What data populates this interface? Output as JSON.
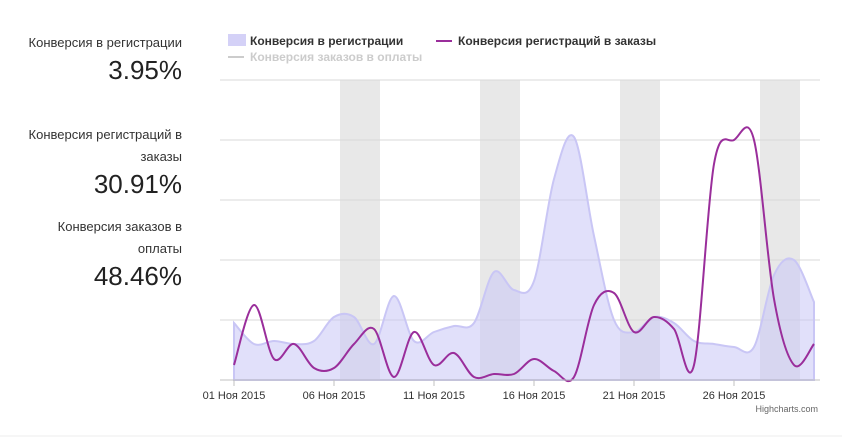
{
  "stats": [
    {
      "label": "Конверсия в регистрации",
      "value": "3.95%"
    },
    {
      "label": "Конверсия регистраций в заказы",
      "value": "30.91%"
    },
    {
      "label": "Конверсия заказов в оплаты",
      "value": "48.46%"
    }
  ],
  "chart_data": {
    "type": "line",
    "categories": [
      "01 Ноя 2015",
      null,
      null,
      null,
      null,
      "06 Ноя 2015",
      null,
      null,
      null,
      null,
      "11 Ноя 2015",
      null,
      null,
      null,
      null,
      "16 Ноя 2015",
      null,
      null,
      null,
      null,
      "21 Ноя 2015",
      null,
      null,
      null,
      null,
      "26 Ноя 2015",
      null,
      null,
      null,
      null
    ],
    "series": [
      {
        "name": "Конверсия в регистрации",
        "kind": "area",
        "color": "#c9c6f5",
        "values": [
          19,
          12,
          13,
          12,
          13,
          21,
          21,
          12,
          28,
          13,
          16,
          18,
          19,
          36,
          30,
          33,
          67,
          81,
          48,
          20,
          16,
          21,
          19,
          13,
          12,
          11,
          11,
          35,
          40,
          26
        ]
      },
      {
        "name": "Конверсия регистраций в заказы",
        "kind": "line",
        "color": "#9a2e9b",
        "values": [
          5,
          25,
          7,
          12,
          4,
          4,
          12,
          17,
          1,
          16,
          5,
          9,
          1,
          2,
          2,
          7,
          3,
          1,
          25,
          29,
          16,
          21,
          17,
          5,
          72,
          80,
          80,
          27,
          5,
          12
        ]
      },
      {
        "name": "Конверсия заказов в оплаты",
        "kind": "line",
        "color": "#cccccc",
        "visible": false
      }
    ],
    "ylim": [
      0,
      100
    ],
    "yticks": [
      0,
      20,
      40,
      60,
      80,
      100
    ],
    "grid": true,
    "credits": "Highcharts.com"
  }
}
